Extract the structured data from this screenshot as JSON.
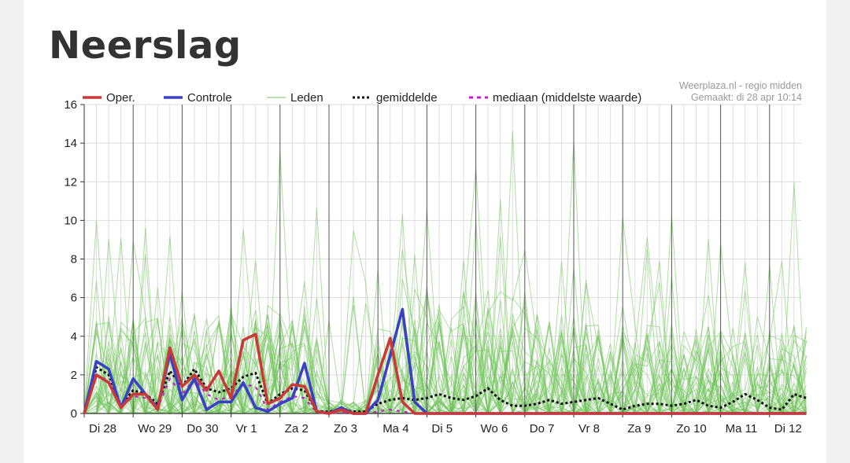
{
  "page": {
    "title": "Neerslag"
  },
  "colors": {
    "oper": "#c9393a",
    "controle": "#3a41c6",
    "leden": "#6fc25a",
    "gemiddelde": "#111111",
    "mediaan": "#c322c9",
    "grid": "#dddddd",
    "day_line": "#555555"
  },
  "chart_data": {
    "type": "line",
    "title": "Neerslag",
    "credit": [
      "Weerplaza.nl - regio midden",
      "Gemaakt: di 28 apr 10:14"
    ],
    "x_categories": [
      "Di 28",
      "Wo 29",
      "Do 30",
      "Vr 1",
      "Za 2",
      "Zo 3",
      "Ma 4",
      "Di 5",
      "Wo 6",
      "Do 7",
      "Vr 8",
      "Za 9",
      "Zo 10",
      "Ma 11",
      "Di 12"
    ],
    "ylim": [
      0,
      16
    ],
    "yticks": [
      0,
      2,
      4,
      6,
      8,
      10,
      12,
      14,
      16
    ],
    "legend": {
      "placement": "top",
      "entries": [
        "Oper.",
        "Controle",
        "Leden",
        "gemiddelde",
        "mediaan (middelste waarde)"
      ]
    },
    "series": [
      {
        "name": "Oper.",
        "x": [
          0.0,
          0.25,
          0.5,
          0.75,
          1.0,
          1.25,
          1.5,
          1.75,
          2.0,
          2.25,
          2.5,
          2.75,
          3.0,
          3.25,
          3.5,
          3.75,
          4.0,
          4.25,
          4.5,
          4.75,
          5.0,
          5.25,
          5.5,
          5.75,
          6.0,
          6.25,
          6.5,
          6.75,
          7.0,
          8.0,
          9.0,
          10.0,
          11.0,
          12.0,
          13.0,
          14.0,
          14.75
        ],
        "y": [
          0,
          2.0,
          1.6,
          0.3,
          1.0,
          1.0,
          0.2,
          3.4,
          1.4,
          2.0,
          1.2,
          2.2,
          0.8,
          3.8,
          4.1,
          0.5,
          0.8,
          1.5,
          1.4,
          0.1,
          0,
          0.2,
          0,
          0,
          2.0,
          3.9,
          0.6,
          0,
          0,
          0,
          0,
          0,
          0,
          0,
          0,
          0,
          0
        ]
      },
      {
        "name": "Controle",
        "x": [
          0.0,
          0.25,
          0.5,
          0.75,
          1.0,
          1.25,
          1.5,
          1.75,
          2.0,
          2.25,
          2.5,
          2.75,
          3.0,
          3.25,
          3.5,
          3.75,
          4.0,
          4.25,
          4.5,
          4.75,
          5.0,
          5.25,
          5.5,
          5.75,
          6.0,
          6.25,
          6.5,
          6.75,
          7.0,
          8.0,
          9.0,
          10.0,
          11.0,
          12.0,
          13.0,
          14.0,
          14.75
        ],
        "y": [
          0,
          2.7,
          2.3,
          0.3,
          1.8,
          1.0,
          0.3,
          3.1,
          0.7,
          1.8,
          0.2,
          0.6,
          0.6,
          1.6,
          0.3,
          0.1,
          0.5,
          0.8,
          2.6,
          0.1,
          0,
          0.3,
          0,
          0,
          0.7,
          3.0,
          5.4,
          0.6,
          0,
          0,
          0,
          0,
          0,
          0,
          0,
          0,
          0
        ]
      },
      {
        "name": "gemiddelde",
        "x": [
          0.0,
          0.25,
          0.5,
          0.75,
          1.0,
          1.25,
          1.5,
          1.75,
          2.0,
          2.25,
          2.5,
          2.75,
          3.0,
          3.25,
          3.5,
          3.75,
          4.0,
          4.25,
          4.5,
          4.75,
          5.0,
          5.25,
          5.5,
          5.75,
          6.0,
          6.25,
          6.5,
          6.75,
          7.0,
          7.25,
          7.5,
          7.75,
          8.0,
          8.25,
          8.5,
          8.75,
          9.0,
          9.25,
          9.5,
          9.75,
          10.0,
          10.25,
          10.5,
          10.75,
          11.0,
          11.25,
          11.5,
          11.75,
          12.0,
          12.25,
          12.5,
          12.75,
          13.0,
          13.25,
          13.5,
          13.75,
          14.0,
          14.25,
          14.5,
          14.75
        ],
        "y": [
          0,
          2.4,
          2.0,
          0.4,
          1.2,
          1.0,
          0.5,
          2.2,
          1.4,
          2.3,
          1.3,
          1.1,
          1.3,
          1.9,
          2.1,
          0.5,
          1.0,
          1.3,
          1.2,
          0.1,
          0.1,
          0.2,
          0.1,
          0.1,
          0.5,
          0.7,
          0.8,
          0.7,
          0.8,
          1.0,
          0.8,
          0.7,
          0.9,
          1.3,
          0.7,
          0.4,
          0.4,
          0.5,
          0.7,
          0.5,
          0.6,
          0.7,
          0.8,
          0.5,
          0.2,
          0.4,
          0.5,
          0.5,
          0.4,
          0.5,
          0.7,
          0.4,
          0.3,
          0.6,
          1.0,
          0.7,
          0.3,
          0.2,
          1.0,
          0.8
        ]
      },
      {
        "name": "mediaan (middelste waarde)",
        "x": [
          0.0,
          0.25,
          0.5,
          0.75,
          1.0,
          1.25,
          1.5,
          1.75,
          2.0,
          2.25,
          2.5,
          2.75,
          3.0,
          3.25,
          3.5,
          3.75,
          4.0,
          4.25,
          4.5,
          4.75,
          5.0,
          5.25,
          5.5,
          5.75,
          6.0,
          6.25,
          6.5,
          6.75,
          7.0,
          8.0,
          9.0,
          10.0,
          11.0,
          12.0,
          13.0,
          14.0,
          14.75
        ],
        "y": [
          0,
          2.0,
          1.7,
          0.3,
          0.9,
          0.8,
          0.3,
          1.8,
          1.0,
          1.8,
          1.0,
          0.7,
          0.9,
          1.5,
          1.4,
          0.2,
          0.6,
          0.9,
          0.8,
          0.05,
          0,
          0.05,
          0,
          0,
          0.1,
          0.2,
          0.1,
          0,
          0,
          0,
          0,
          0,
          0,
          0,
          0,
          0,
          0
        ]
      }
    ]
  }
}
